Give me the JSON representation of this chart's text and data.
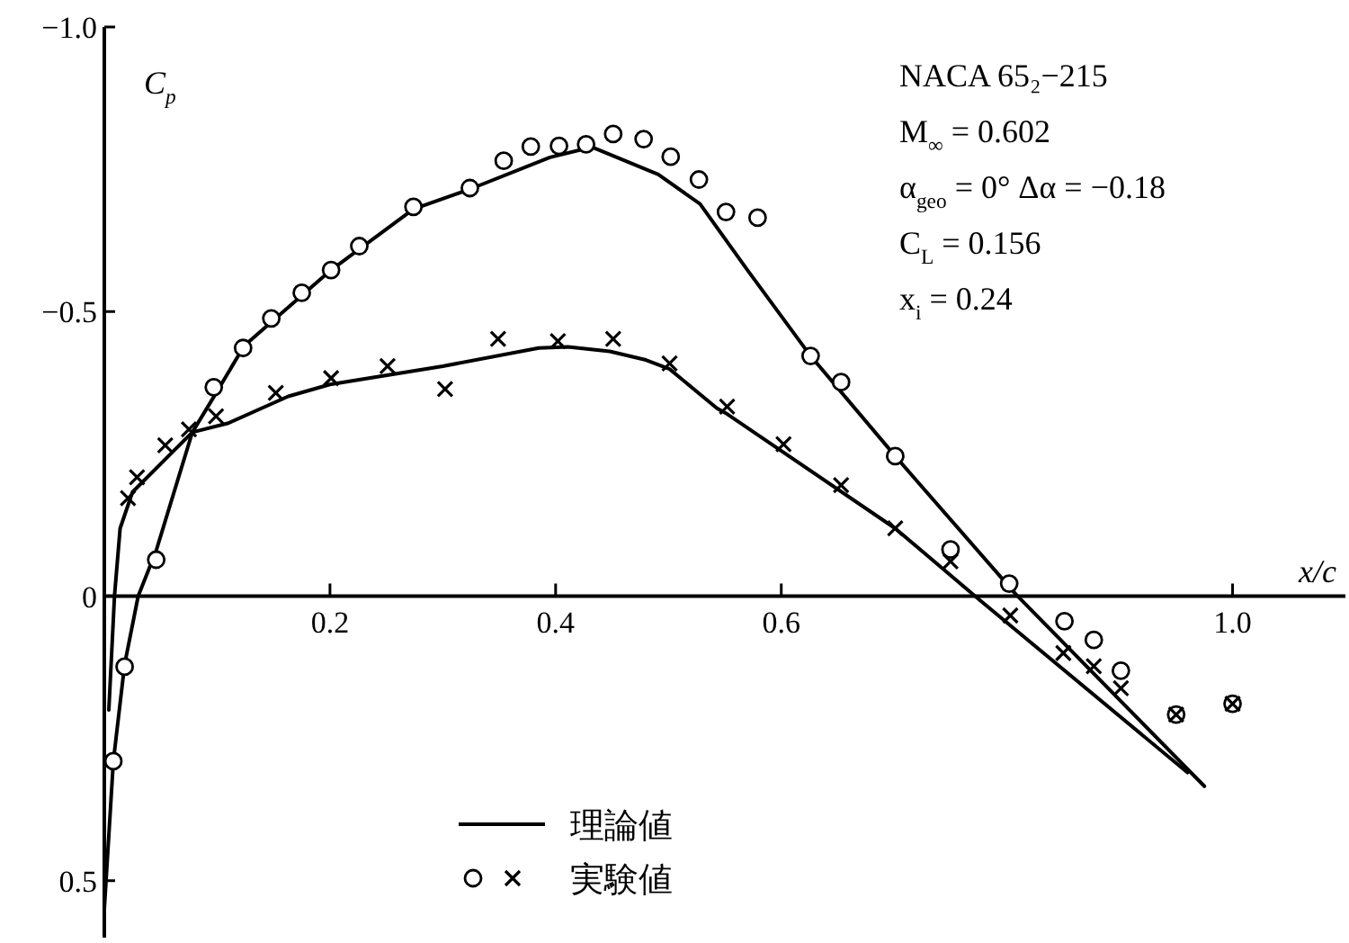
{
  "chart_data": {
    "type": "line",
    "xlabel": "x/c",
    "ylabel": "C$_{p}$",
    "xlim": [
      0,
      1.1
    ],
    "ylim": [
      0.6,
      -1.0
    ],
    "xticks": [
      0.2,
      0.4,
      0.6,
      {
        "value": 1.0,
        "label": "1.0"
      }
    ],
    "yticks": [
      {
        "value": -1.0,
        "label": "−1.0"
      },
      {
        "value": -0.5,
        "label": "−0.5"
      },
      {
        "value": 0,
        "label": "0"
      },
      {
        "value": 0.5,
        "label": "0.5"
      }
    ],
    "legend": "bottom",
    "grid": false,
    "annotations": [
      "NACA 65₂−215",
      "M$_{∞}$ = 0.602",
      "α$_{geo}$ = 0°  Δα = −0.18",
      "C$_{L}$ = 0.156",
      "x$_{i}$ = 0.24"
    ],
    "series": [
      {
        "name": "理論値",
        "marker": "none",
        "color": "#000000",
        "x": [
          0.0,
          0.008,
          0.018,
          0.03,
          0.046,
          0.078,
          0.097,
          0.124,
          0.201,
          0.274,
          0.324,
          0.395,
          0.432,
          0.491,
          0.528,
          0.57,
          0.626,
          0.701,
          0.808,
          0.975
        ],
        "values": [
          0.55,
          0.29,
          0.12,
          0.0,
          -0.08,
          -0.288,
          -0.35,
          -0.44,
          -0.573,
          -0.68,
          -0.715,
          -0.771,
          -0.789,
          -0.741,
          -0.689,
          -0.573,
          -0.422,
          -0.246,
          -0.003,
          0.334
        ]
      },
      {
        "marker": "none",
        "color": "#000000",
        "x": [
          0.004,
          0.009,
          0.014,
          0.025,
          0.078,
          0.11,
          0.163,
          0.2,
          0.3,
          0.385,
          0.411,
          0.448,
          0.48,
          0.501,
          0.543,
          0.552,
          0.701,
          0.776,
          0.96
        ],
        "values": [
          0.2,
          0.0,
          -0.119,
          -0.183,
          -0.288,
          -0.304,
          -0.351,
          -0.372,
          -0.404,
          -0.436,
          -0.438,
          -0.43,
          -0.415,
          -0.399,
          -0.33,
          -0.32,
          -0.119,
          0.007,
          0.31
        ]
      },
      {
        "name": "実験値",
        "type": "scatter",
        "marker": "circle",
        "color": "#000000",
        "x": [
          0.008,
          0.018,
          0.046,
          0.097,
          0.123,
          0.148,
          0.175,
          0.201,
          0.226,
          0.274,
          0.324,
          0.354,
          0.378,
          0.403,
          0.427,
          0.451,
          0.478,
          0.502,
          0.527,
          0.551,
          0.579,
          0.626,
          0.653,
          0.701,
          0.75,
          0.802,
          0.851,
          0.877,
          0.901,
          0.95,
          1.0
        ],
        "values": [
          0.29,
          0.124,
          -0.064,
          -0.367,
          -0.436,
          -0.488,
          -0.533,
          -0.573,
          -0.615,
          -0.684,
          -0.717,
          -0.765,
          -0.79,
          -0.791,
          -0.794,
          -0.812,
          -0.803,
          -0.772,
          -0.732,
          -0.675,
          -0.665,
          -0.422,
          -0.376,
          -0.246,
          -0.082,
          -0.022,
          0.044,
          0.077,
          0.131,
          0.208,
          0.189
        ]
      },
      {
        "type": "scatter",
        "marker": "cross",
        "color": "#000000",
        "x": [
          0.021,
          0.029,
          0.054,
          0.075,
          0.099,
          0.152,
          0.201,
          0.251,
          0.302,
          0.349,
          0.402,
          0.451,
          0.501,
          0.552,
          0.602,
          0.653,
          0.701,
          0.75,
          0.803,
          0.85,
          0.877,
          0.901,
          0.95,
          1.0
        ],
        "values": [
          -0.172,
          -0.209,
          -0.265,
          -0.293,
          -0.316,
          -0.357,
          -0.383,
          -0.404,
          -0.364,
          -0.452,
          -0.448,
          -0.452,
          -0.409,
          -0.333,
          -0.267,
          -0.195,
          -0.119,
          -0.061,
          0.034,
          0.1,
          0.123,
          0.162,
          0.208,
          0.189
        ]
      }
    ]
  }
}
